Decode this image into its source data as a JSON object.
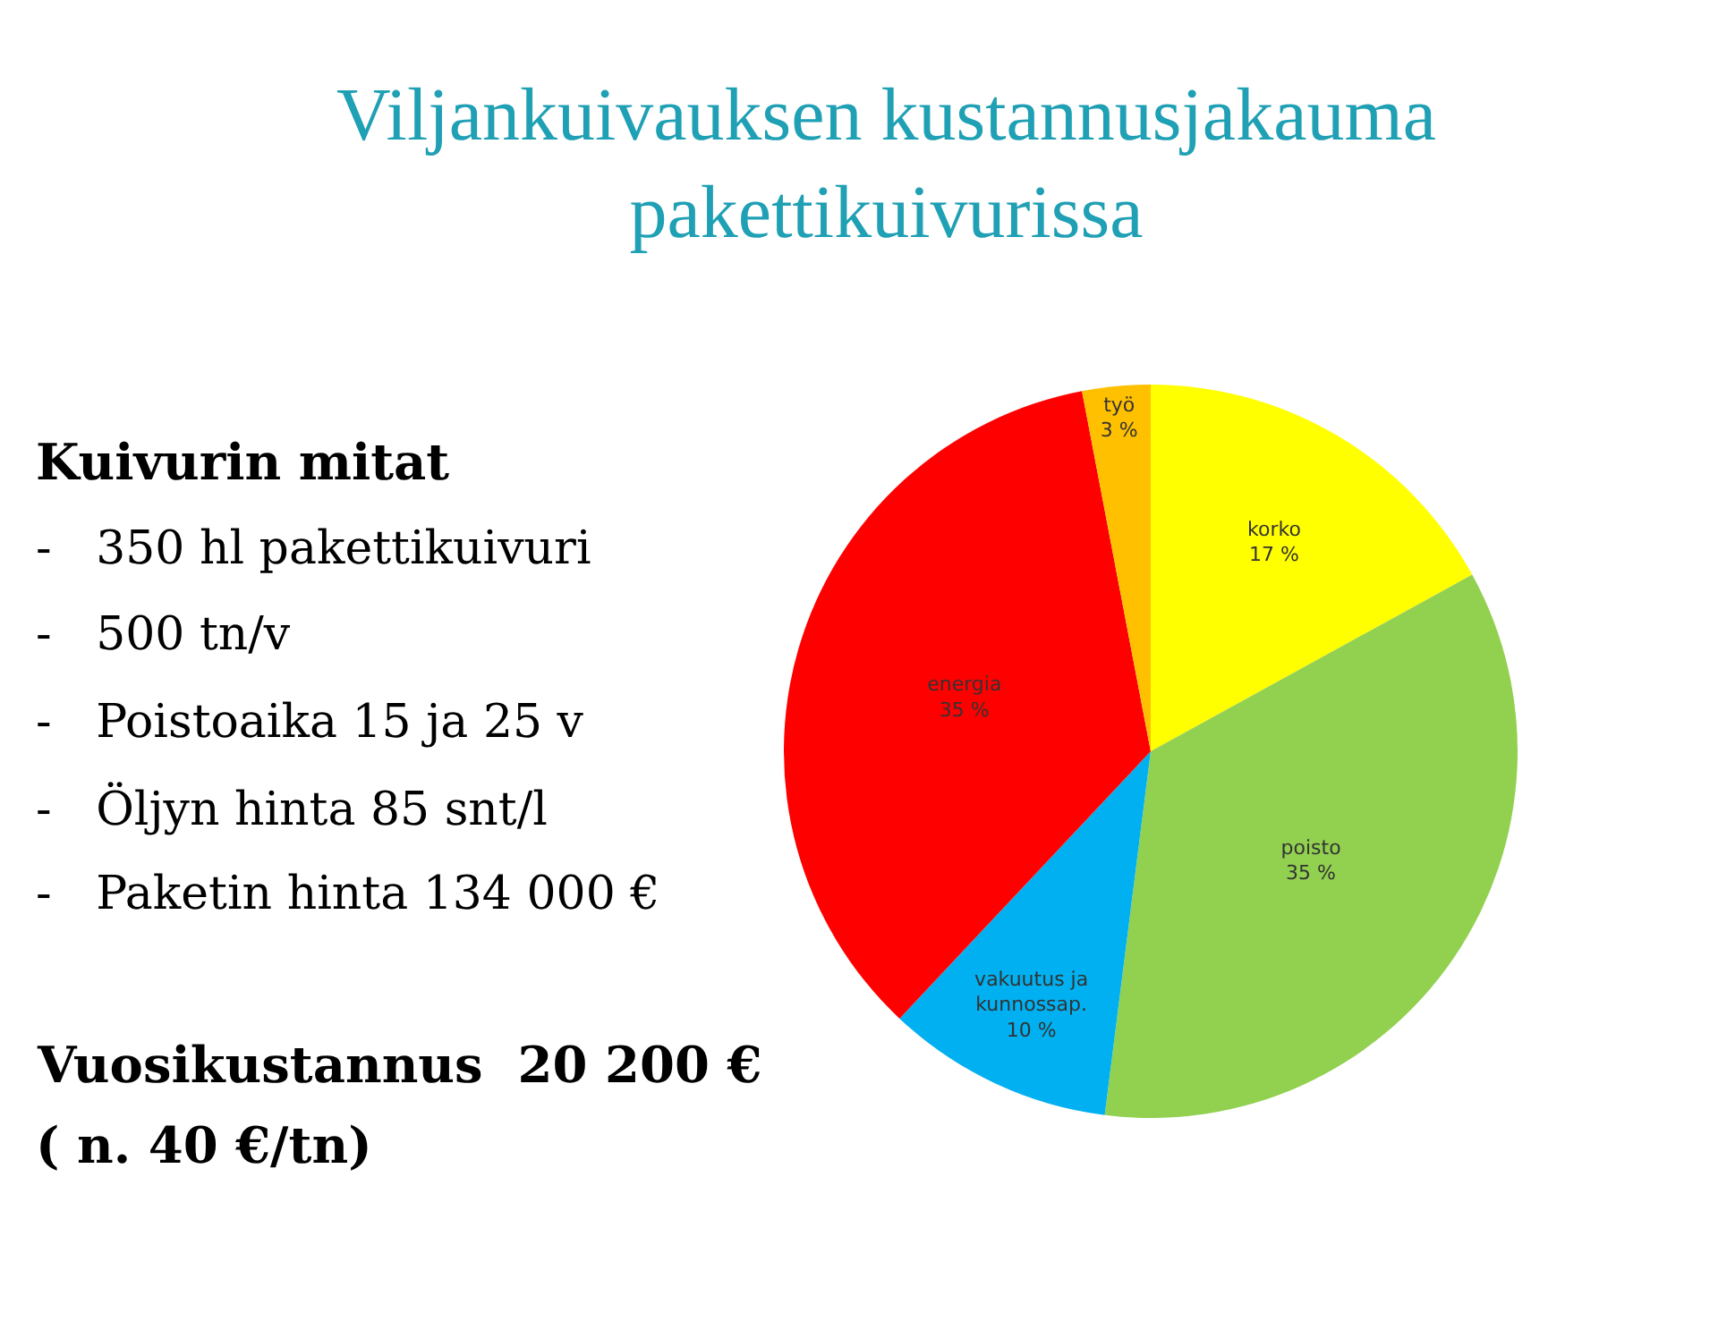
{
  "chart_data": {
    "type": "pie",
    "title": "Viljankuivauksen kustannusjakauma\npakettikuivurissa",
    "categories": [
      "korko",
      "poisto",
      "vakuutus ja\nkunnossap.",
      "energia",
      "työ"
    ],
    "values": [
      17,
      35,
      10,
      35,
      3
    ],
    "value_labels": [
      "17 %",
      "35 %",
      "10 %",
      "35 %",
      "3 %"
    ],
    "colors": [
      "#ffff00",
      "#92d050",
      "#00b0f0",
      "#ff0000",
      "#ffc000"
    ],
    "legend": false,
    "annotations": [
      "Kuivurin mitat",
      "-   350 hl pakettikuivuri",
      "-   500 tn/v",
      "-   Poistoaika 15 ja 25 v",
      "-   Öljyn hinta 85 snt/l",
      "-   Paketin hinta 134 000 €",
      "Vuosikustannus  20 200 €",
      "( n. 40 €/tn)"
    ]
  }
}
